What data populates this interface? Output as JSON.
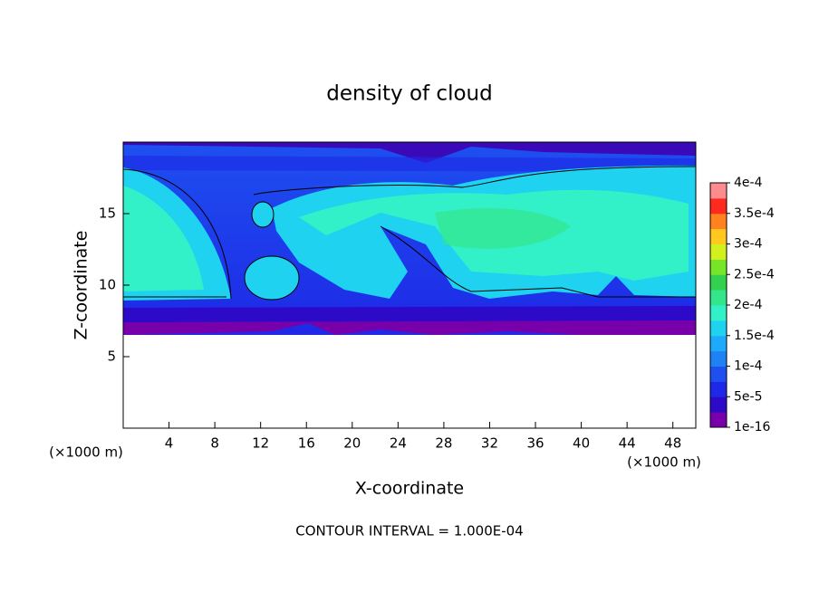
{
  "chart_data": {
    "type": "contour",
    "title": "density of cloud",
    "x_label": "X-coordinate",
    "y_label": "Z-coordinate",
    "x_unit": "(×1000 m)",
    "y_unit": "(×1000 m)",
    "xlim": [
      0,
      50
    ],
    "xticks": [
      4,
      8,
      12,
      16,
      20,
      24,
      28,
      32,
      36,
      40,
      44,
      48
    ],
    "ylim": [
      0,
      20
    ],
    "yticks": [
      5,
      10,
      15
    ],
    "colorbar": {
      "clim": [
        1e-16,
        0.0004
      ],
      "ticks": [
        {
          "value": 1e-16,
          "label": "1e-16"
        },
        {
          "value": 5e-05,
          "label": "5e-5"
        },
        {
          "value": 0.0001,
          "label": "1e-4"
        },
        {
          "value": 0.00015,
          "label": "1.5e-4"
        },
        {
          "value": 0.0002,
          "label": "2e-4"
        },
        {
          "value": 0.00025,
          "label": "2.5e-4"
        },
        {
          "value": 0.0003,
          "label": "3e-4"
        },
        {
          "value": 0.00035,
          "label": "3.5e-4"
        },
        {
          "value": 0.0004,
          "label": "4e-4"
        }
      ],
      "colors": [
        "#7800aa",
        "#2d0ac8",
        "#1e28e6",
        "#1e50f0",
        "#1e82f5",
        "#1eaafa",
        "#1ed2f0",
        "#32f0c8",
        "#32e68c",
        "#32d250",
        "#78e628",
        "#d2f01e",
        "#ffc81e",
        "#ff821e",
        "#ff2a1e",
        "#ff8c8c"
      ]
    },
    "note": "CONTOUR INTERVAL = 1.000E-04"
  }
}
